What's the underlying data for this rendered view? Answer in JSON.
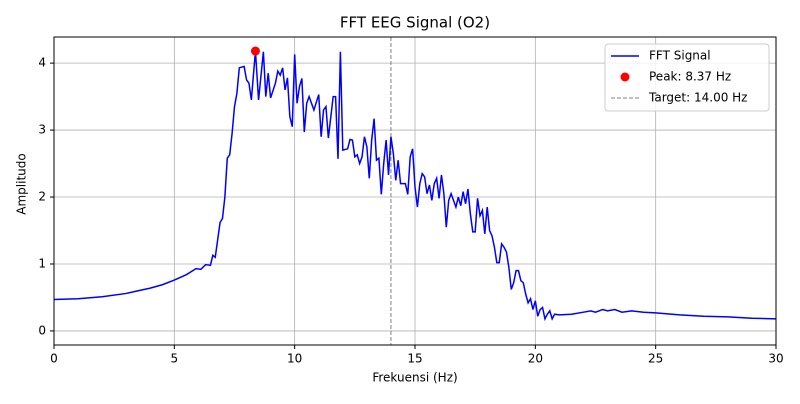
{
  "chart_data": {
    "type": "line",
    "title": "FFT EEG Signal (O2)",
    "x_label": "Frekuensi (Hz)",
    "y_label": "Amplitudo",
    "xlim": [
      0,
      30
    ],
    "ylim": [
      -0.21,
      4.39
    ],
    "xticks": [
      0,
      5,
      10,
      15,
      20,
      25,
      30
    ],
    "yticks": [
      0,
      1,
      2,
      3,
      4
    ],
    "grid": true,
    "legend": "upper right",
    "series": [
      {
        "name": "FFT Signal",
        "color": "#0000ff",
        "x": [
          0,
          1,
          2,
          3,
          3.5,
          4,
          4.5,
          5,
          5.5,
          5.9,
          6.1,
          6.3,
          6.5,
          6.6,
          6.7,
          6.9,
          7.0,
          7.1,
          7.2,
          7.3,
          7.4,
          7.5,
          7.6,
          7.7,
          7.9,
          8.0,
          8.1,
          8.2,
          8.37,
          8.5,
          8.7,
          8.8,
          8.9,
          9.0,
          9.2,
          9.3,
          9.4,
          9.5,
          9.6,
          9.7,
          9.8,
          9.9,
          10.0,
          10.1,
          10.2,
          10.3,
          10.4,
          10.5,
          10.6,
          10.8,
          11.0,
          11.1,
          11.2,
          11.3,
          11.4,
          11.6,
          11.7,
          11.8,
          11.9,
          12.0,
          12.2,
          12.3,
          12.4,
          12.5,
          12.6,
          12.7,
          12.8,
          12.9,
          13.0,
          13.1,
          13.2,
          13.3,
          13.4,
          13.5,
          13.6,
          13.7,
          13.8,
          13.9,
          14.0,
          14.1,
          14.2,
          14.3,
          14.4,
          14.6,
          14.7,
          14.8,
          14.9,
          15.0,
          15.1,
          15.2,
          15.3,
          15.4,
          15.5,
          15.6,
          15.7,
          15.8,
          15.9,
          16.0,
          16.1,
          16.2,
          16.3,
          16.4,
          16.5,
          16.6,
          16.7,
          16.8,
          16.9,
          17.0,
          17.1,
          17.2,
          17.3,
          17.4,
          17.5,
          17.6,
          17.7,
          17.8,
          17.9,
          18.0,
          18.1,
          18.2,
          18.3,
          18.4,
          18.5,
          18.6,
          18.7,
          18.8,
          18.9,
          19.0,
          19.1,
          19.2,
          19.3,
          19.4,
          19.5,
          19.6,
          19.7,
          19.8,
          19.9,
          20.0,
          20.1,
          20.2,
          20.3,
          20.4,
          20.5,
          20.6,
          20.7,
          20.8,
          21.0,
          21.5,
          22,
          22.3,
          22.5,
          22.8,
          23.0,
          23.3,
          23.6,
          24.0,
          24.5,
          25,
          26,
          27,
          28,
          29,
          30
        ],
        "values": [
          0.47,
          0.48,
          0.51,
          0.56,
          0.6,
          0.64,
          0.69,
          0.76,
          0.84,
          0.93,
          0.92,
          0.99,
          0.98,
          1.13,
          1.1,
          1.62,
          1.68,
          2.0,
          2.58,
          2.63,
          2.95,
          3.35,
          3.55,
          3.93,
          3.95,
          3.75,
          3.7,
          3.45,
          4.18,
          3.45,
          4.17,
          3.5,
          3.85,
          3.48,
          3.7,
          3.88,
          3.82,
          3.93,
          3.6,
          3.78,
          3.2,
          3.05,
          4.13,
          3.4,
          3.65,
          3.77,
          2.97,
          3.4,
          3.5,
          3.3,
          3.53,
          2.9,
          3.3,
          3.35,
          2.88,
          3.5,
          3.5,
          2.57,
          4.17,
          2.7,
          2.72,
          2.86,
          2.85,
          2.6,
          2.63,
          2.5,
          2.6,
          2.9,
          2.75,
          2.28,
          2.85,
          3.17,
          2.55,
          2.58,
          2.04,
          2.5,
          2.85,
          2.33,
          2.9,
          2.65,
          2.25,
          2.55,
          2.2,
          2.2,
          2.04,
          2.6,
          2.72,
          2.15,
          1.85,
          2.2,
          2.35,
          2.3,
          2.05,
          2.18,
          1.95,
          2.2,
          2.28,
          1.98,
          2.33,
          2.05,
          1.55,
          1.95,
          2.05,
          1.95,
          1.85,
          2.0,
          1.87,
          2.08,
          1.9,
          2.12,
          1.75,
          1.48,
          1.48,
          1.98,
          1.72,
          1.8,
          1.45,
          1.85,
          1.5,
          1.42,
          1.25,
          1.02,
          1.02,
          1.3,
          1.25,
          1.18,
          0.95,
          0.62,
          0.72,
          0.9,
          0.9,
          0.75,
          0.72,
          0.55,
          0.42,
          0.48,
          0.32,
          0.45,
          0.22,
          0.32,
          0.35,
          0.18,
          0.25,
          0.3,
          0.18,
          0.25,
          0.24,
          0.25,
          0.28,
          0.3,
          0.28,
          0.32,
          0.3,
          0.32,
          0.28,
          0.3,
          0.28,
          0.27,
          0.24,
          0.22,
          0.21,
          0.19,
          0.18
        ]
      }
    ],
    "peak": {
      "name": "Peak: 8.37 Hz",
      "color": "#ff0000",
      "x": 8.37,
      "y": 4.18
    },
    "target": {
      "name": "Target: 14.00 Hz",
      "color": "#808080",
      "x": 14
    }
  }
}
